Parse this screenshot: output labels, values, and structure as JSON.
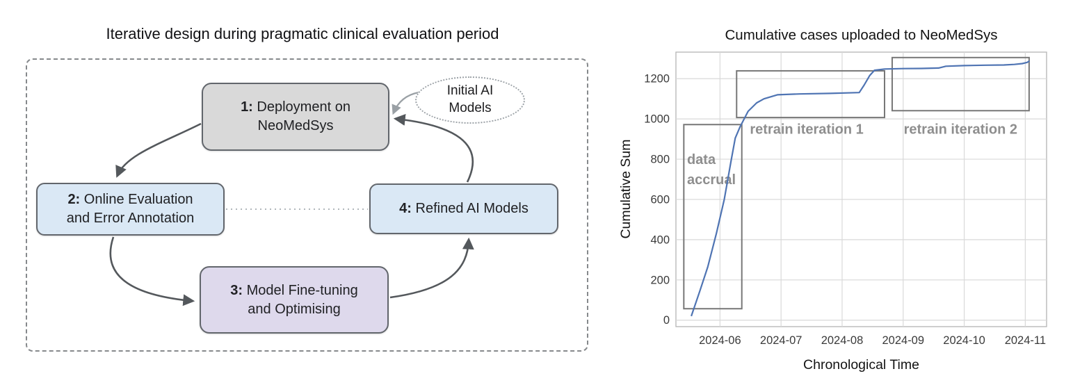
{
  "diagram": {
    "title": "Iterative design during pragmatic clinical evaluation period",
    "bubble": {
      "line1": "Initial AI",
      "line2": "Models"
    },
    "boxes": {
      "box1": {
        "number": "1:",
        "line1": " Deployment on",
        "line2": "NeoMedSys",
        "fill": "#d9d9d9"
      },
      "box2": {
        "number": "2:",
        "line1": " Online Evaluation",
        "line2": "and Error Annotation",
        "fill": "#dae8f5"
      },
      "box3": {
        "number": "3:",
        "line1": " Model Fine-tuning",
        "line2": "and Optimising",
        "fill": "#ded9ec"
      },
      "box4": {
        "number": "4:",
        "line1": " Refined AI Models",
        "line2": "",
        "fill": "#dae8f5"
      }
    }
  },
  "chart_data": {
    "type": "line",
    "title": "Cumulative cases uploaded to NeoMedSys",
    "xlabel": "Chronological Time",
    "ylabel": "Cumulative Sum",
    "x_unit": "months since 2024-05-01",
    "x_ticks": [
      {
        "t": 1,
        "label": "2024-06"
      },
      {
        "t": 2,
        "label": "2024-07"
      },
      {
        "t": 3,
        "label": "2024-08"
      },
      {
        "t": 4,
        "label": "2024-09"
      },
      {
        "t": 5,
        "label": "2024-10"
      },
      {
        "t": 6,
        "label": "2024-11"
      }
    ],
    "y_ticks": [
      0,
      200,
      400,
      600,
      800,
      1000,
      1200
    ],
    "xlim": [
      0.278,
      6.349
    ],
    "ylim": [
      -32,
      1332
    ],
    "grid": true,
    "legend": "none",
    "colors": {
      "line": "#4f74b3",
      "grid": "#d9d9d9",
      "spine": "#b9b9b9",
      "tick_text": "#3a3a3a",
      "label_text": "#131313",
      "annotation_stroke": "#777777",
      "annotation_text": "#8e8e8e"
    },
    "series": [
      {
        "name": "cumulative cases",
        "points": [
          [
            0.53,
            20
          ],
          [
            0.67,
            145
          ],
          [
            0.8,
            265
          ],
          [
            0.94,
            430
          ],
          [
            1.07,
            600
          ],
          [
            1.18,
            790
          ],
          [
            1.25,
            905
          ],
          [
            1.33,
            962
          ],
          [
            1.46,
            1038
          ],
          [
            1.6,
            1080
          ],
          [
            1.72,
            1100
          ],
          [
            1.94,
            1120
          ],
          [
            2.3,
            1124
          ],
          [
            2.8,
            1127
          ],
          [
            3.28,
            1131
          ],
          [
            3.36,
            1168
          ],
          [
            3.45,
            1215
          ],
          [
            3.53,
            1242
          ],
          [
            3.7,
            1248
          ],
          [
            4.0,
            1250
          ],
          [
            4.3,
            1251
          ],
          [
            4.58,
            1253
          ],
          [
            4.7,
            1262
          ],
          [
            5.0,
            1265
          ],
          [
            5.35,
            1267
          ],
          [
            5.65,
            1268
          ],
          [
            5.82,
            1271
          ],
          [
            5.95,
            1275
          ],
          [
            6.03,
            1281
          ],
          [
            6.07,
            1288
          ]
        ]
      }
    ],
    "annotations": {
      "boxes": [
        {
          "name": "data-accrual-box",
          "x0": 0.407,
          "x1": 1.357,
          "y0": 57,
          "y1": 972
        },
        {
          "name": "retrain-iteration-1-box",
          "x0": 1.272,
          "x1": 3.695,
          "y0": 1007,
          "y1": 1239
        },
        {
          "name": "retrain-iteration-2-box",
          "x0": 3.82,
          "x1": 6.063,
          "y0": 1041,
          "y1": 1305
        }
      ],
      "labels": [
        {
          "name": "data-accrual-label-1",
          "text": "data",
          "x": 0.46,
          "y": 800,
          "anchor": "start"
        },
        {
          "name": "data-accrual-label-2",
          "text": "accrual",
          "x": 0.46,
          "y": 700,
          "anchor": "start"
        },
        {
          "name": "retrain-iteration-1-label",
          "text": "retrain iteration 1",
          "x": 2.42,
          "y": 950,
          "anchor": "middle"
        },
        {
          "name": "retrain-iteration-2-label",
          "text": "retrain iteration 2",
          "x": 4.94,
          "y": 950,
          "anchor": "middle"
        }
      ]
    }
  }
}
